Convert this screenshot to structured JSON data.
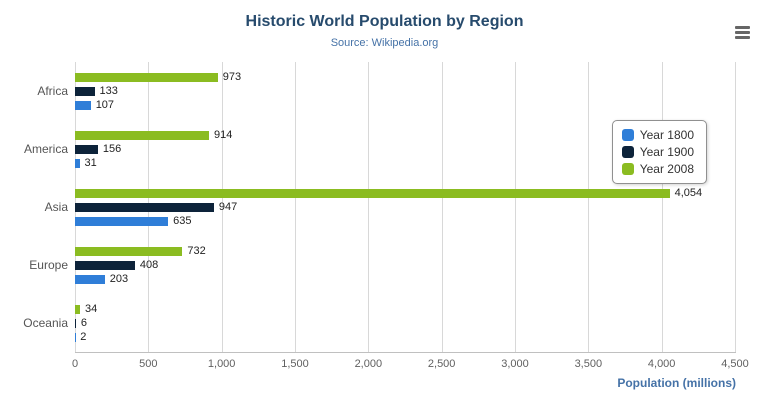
{
  "chart": {
    "title": "Historic World Population by Region",
    "subtitle": "Source: Wikipedia.org",
    "menu_icon": "hamburger-menu",
    "theme": {
      "title_color": "#274b6d",
      "subtitle_color": "#4572a7",
      "axis_title_color": "#4572a7",
      "gridline_color": "#d8d8d8"
    }
  },
  "chart_data": {
    "type": "bar",
    "orientation": "horizontal",
    "title": "Historic World Population by Region",
    "subtitle": "Source: Wikipedia.org",
    "categories": [
      "Africa",
      "America",
      "Asia",
      "Europe",
      "Oceania"
    ],
    "series": [
      {
        "name": "Year 1800",
        "color": "#2f7ed8",
        "values": [
          107,
          31,
          635,
          203,
          2
        ]
      },
      {
        "name": "Year 1900",
        "color": "#0d233a",
        "values": [
          133,
          156,
          947,
          408,
          6
        ]
      },
      {
        "name": "Year 2008",
        "color": "#8bbc21",
        "values": [
          973,
          914,
          4054,
          732,
          34
        ]
      }
    ],
    "bar_display_order_top_to_bottom": [
      "Year 2008",
      "Year 1900",
      "Year 1800"
    ],
    "xlabel": "Population (millions)",
    "ylabel": "",
    "xlim": [
      0,
      4500
    ],
    "xticks": [
      0,
      500,
      1000,
      1500,
      2000,
      2500,
      3000,
      3500,
      4000,
      4500
    ],
    "tick_labels": [
      "0",
      "500",
      "1,000",
      "1,500",
      "2,000",
      "2,500",
      "3,000",
      "3,500",
      "4,000",
      "4,500"
    ],
    "grid": true,
    "legend_position": "right",
    "value_labels_shown": true
  }
}
